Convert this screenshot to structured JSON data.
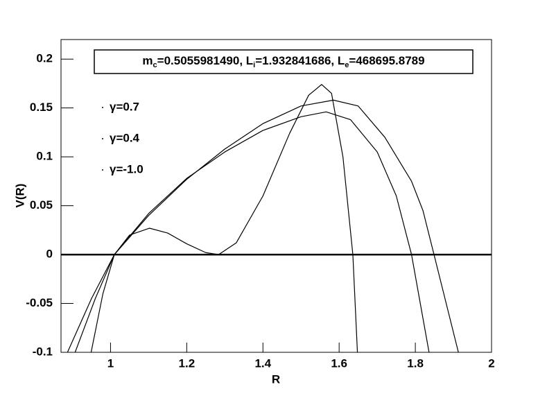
{
  "chart_data": {
    "type": "line",
    "annotation": [
      "m",
      "c",
      "=0.5055981490, L",
      "i",
      "=1.932841686, L",
      "e",
      "=468695.8789"
    ],
    "x_label": "R",
    "y_label": "V(R)",
    "xlim": [
      0.87,
      2
    ],
    "ylim": [
      -0.1,
      0.22
    ],
    "xticks": [
      1,
      1.2,
      1.4,
      1.6,
      1.8,
      2
    ],
    "yticks": [
      -0.1,
      -0.05,
      0,
      0.05,
      0.1,
      0.15,
      0.2
    ],
    "legend_position": "upper left",
    "series": [
      {
        "name": "γ=0.7",
        "color": "#000000",
        "x": [
          0.887,
          0.95,
          1.01,
          1.1,
          1.2,
          1.3,
          1.4,
          1.5,
          1.585,
          1.65,
          1.72,
          1.79,
          1.82,
          1.849,
          1.913
        ],
        "values": [
          -0.1,
          -0.045,
          0,
          0.04,
          0.077,
          0.108,
          0.134,
          0.152,
          0.158,
          0.152,
          0.12,
          0.075,
          0.045,
          0,
          -0.1
        ]
      },
      {
        "name": "γ=0.4",
        "color": "#000000",
        "x": [
          0.907,
          0.96,
          1.01,
          1.1,
          1.2,
          1.3,
          1.4,
          1.5,
          1.566,
          1.63,
          1.7,
          1.75,
          1.79,
          1.836
        ],
        "values": [
          -0.1,
          -0.045,
          0,
          0.042,
          0.078,
          0.105,
          0.127,
          0.141,
          0.146,
          0.138,
          0.105,
          0.06,
          0,
          -0.1
        ]
      },
      {
        "name": "γ=-1.0",
        "color": "#000000",
        "x": [
          0.949,
          0.98,
          1.01,
          1.05,
          1.102,
          1.15,
          1.2,
          1.25,
          1.284,
          1.33,
          1.4,
          1.47,
          1.52,
          1.554,
          1.58,
          1.61,
          1.636,
          1.648
        ],
        "values": [
          -0.1,
          -0.04,
          0,
          0.02,
          0.027,
          0.022,
          0.011,
          0.002,
          0,
          0.012,
          0.06,
          0.124,
          0.163,
          0.174,
          0.165,
          0.1,
          0,
          -0.1
        ]
      }
    ]
  }
}
